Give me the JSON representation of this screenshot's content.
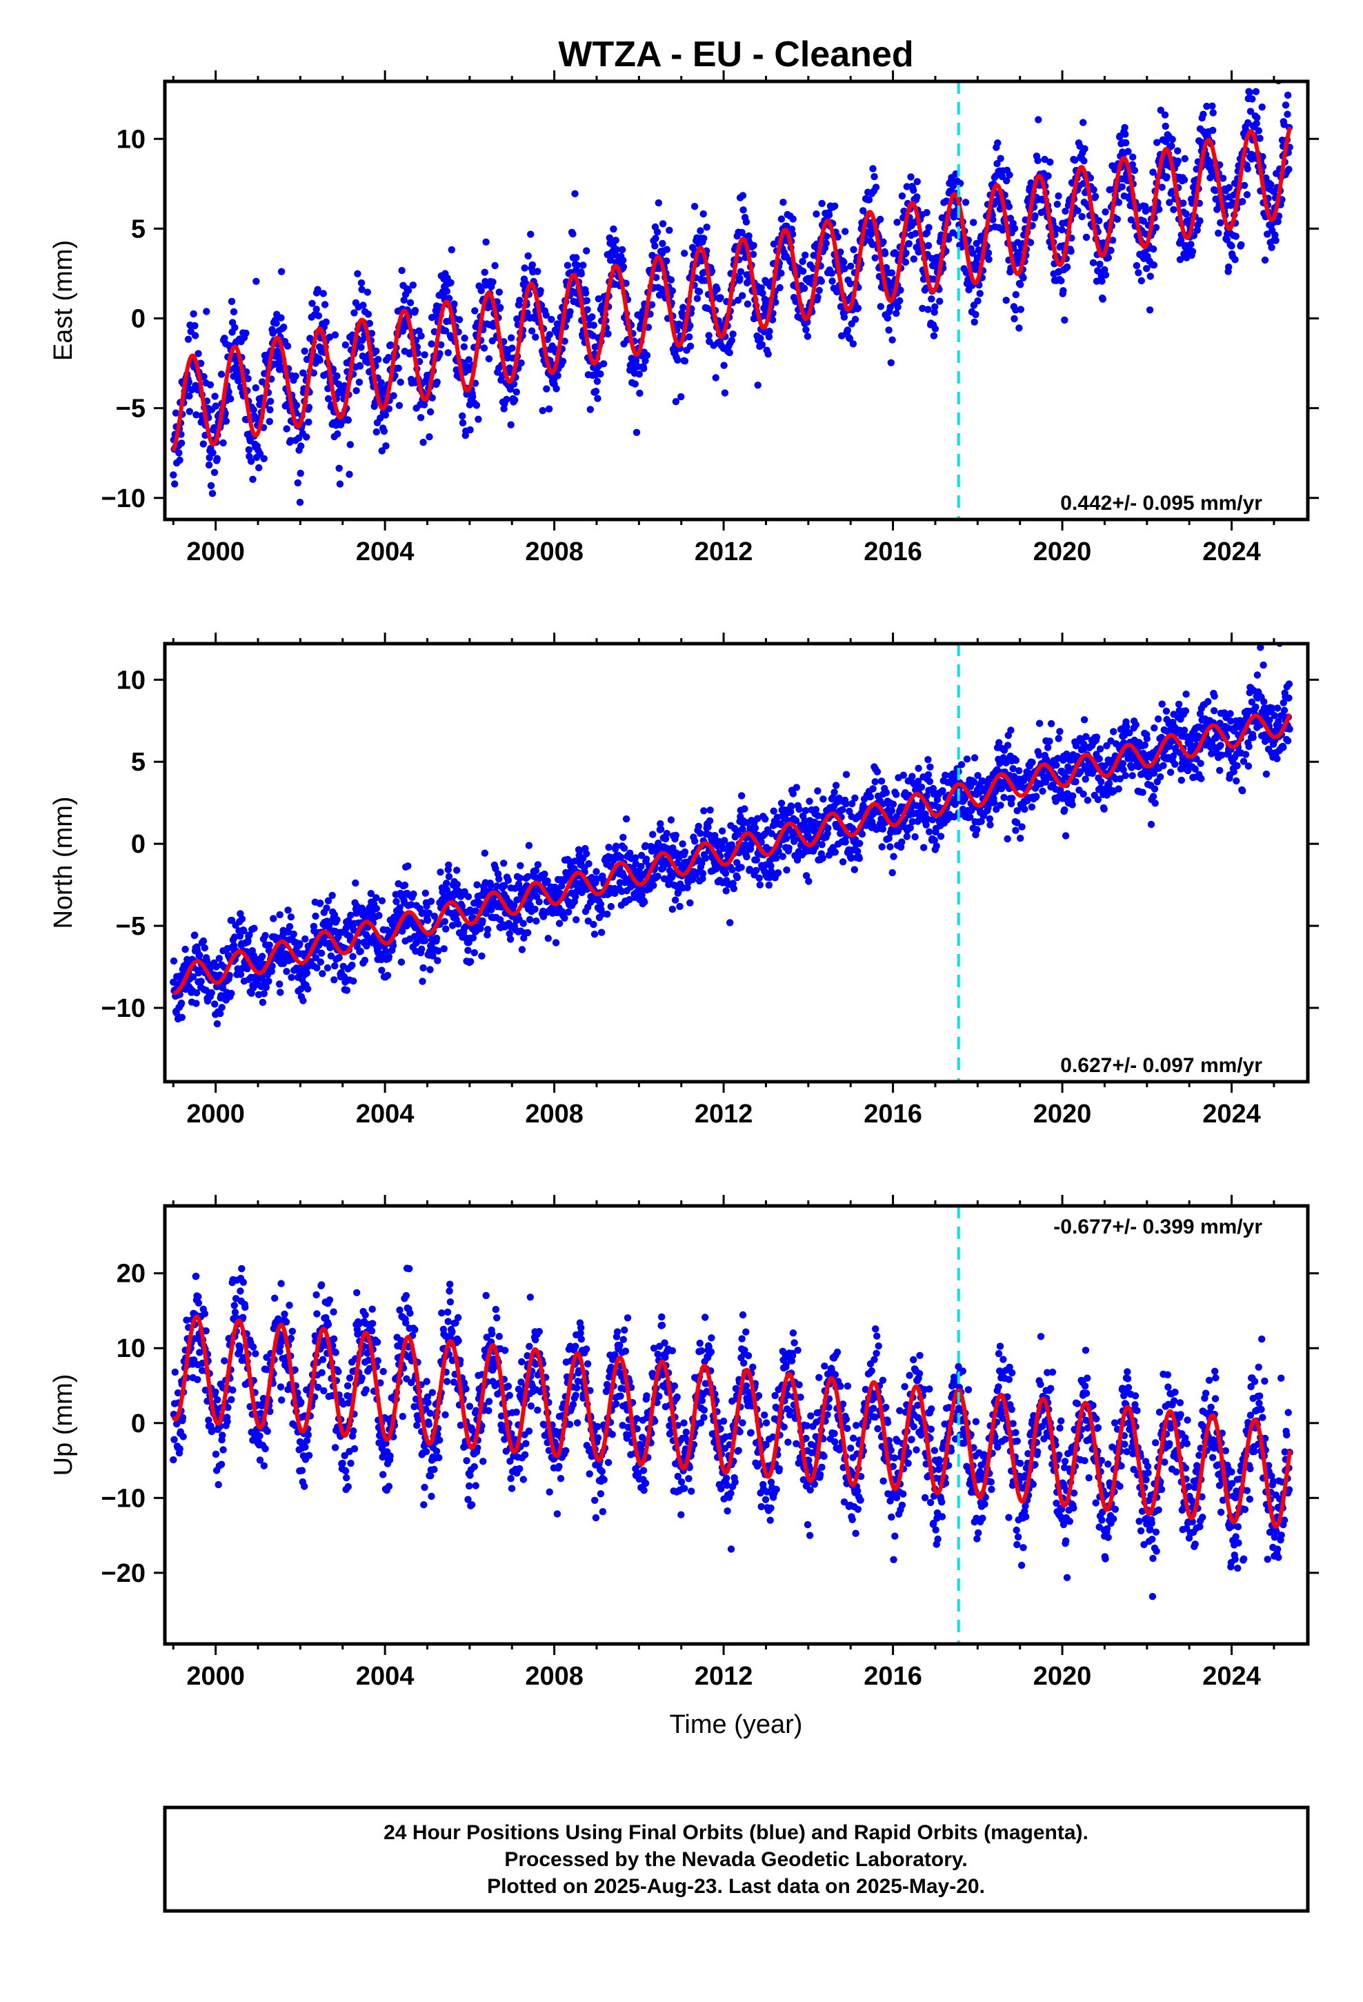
{
  "chart_data": [
    {
      "type": "scatter",
      "title": "WTZA  - EU - Cleaned",
      "ylabel": "East (mm)",
      "xlabel": "",
      "xlim": [
        1998.8,
        2025.8
      ],
      "ylim": [
        -11.2,
        13.2
      ],
      "x_ticks": [
        2000,
        2004,
        2008,
        2012,
        2016,
        2020,
        2024
      ],
      "y_ticks": [
        -10,
        -5,
        0,
        5,
        10
      ],
      "rate_text": "0.442+/- 0.095 mm/yr",
      "rate_position": "bottom-right",
      "grid": false,
      "marker_line_year": 2017.55,
      "data_range": [
        1999.0,
        2025.38
      ],
      "series": [
        {
          "name": "Final Orbits",
          "kind": "scatter",
          "color": "#0000ff",
          "model": {
            "intercept": -4.9,
            "rate": 0.5,
            "annual_amplitude": 2.6,
            "peak_phase": 0.45,
            "scatter_sd": 1.3
          }
        },
        {
          "name": "Model Fit",
          "kind": "line",
          "color": "#ff0000",
          "x": [
            1999.0,
            2004.0,
            2008.0,
            2012.0,
            2016.0,
            2020.0,
            2025.38
          ],
          "y": [
            -4.9,
            -2.4,
            -0.4,
            1.6,
            3.6,
            5.6,
            8.3
          ]
        }
      ]
    },
    {
      "type": "scatter",
      "title": "",
      "ylabel": "North (mm)",
      "xlabel": "",
      "xlim": [
        1998.8,
        2025.8
      ],
      "ylim": [
        -14.5,
        12.2
      ],
      "x_ticks": [
        2000,
        2004,
        2008,
        2012,
        2016,
        2020,
        2024
      ],
      "y_ticks": [
        -10,
        -5,
        0,
        5,
        10
      ],
      "rate_text": "0.627+/- 0.097 mm/yr",
      "rate_position": "bottom-right",
      "grid": false,
      "marker_line_year": 2017.55,
      "data_range": [
        1999.0,
        2025.38
      ],
      "series": [
        {
          "name": "Final Orbits",
          "kind": "scatter",
          "color": "#0000ff",
          "model": {
            "intercept": -8.3,
            "rate": 0.6,
            "annual_amplitude": 0.8,
            "peak_phase": 0.55,
            "scatter_sd": 1.1
          }
        },
        {
          "name": "Model Fit",
          "kind": "line",
          "color": "#ff0000",
          "x": [
            1999.0,
            2004.0,
            2008.0,
            2012.0,
            2016.0,
            2020.0,
            2025.38
          ],
          "y": [
            -8.3,
            -5.3,
            -2.9,
            -0.5,
            1.9,
            4.3,
            7.5
          ]
        }
      ]
    },
    {
      "type": "scatter",
      "title": "",
      "ylabel": "Up (mm)",
      "xlabel": "Time (year)",
      "xlim": [
        1998.8,
        2025.8
      ],
      "ylim": [
        -29.5,
        29.0
      ],
      "x_ticks": [
        2000,
        2004,
        2008,
        2012,
        2016,
        2020,
        2024
      ],
      "y_ticks": [
        -20,
        -10,
        0,
        10,
        20
      ],
      "rate_text": "-0.677+/- 0.399 mm/yr",
      "rate_position": "top-right",
      "grid": false,
      "marker_line_year": 2017.55,
      "data_range": [
        1999.0,
        2025.38
      ],
      "series": [
        {
          "name": "Final Orbits",
          "kind": "scatter",
          "color": "#0000ff",
          "model": {
            "intercept": 7.5,
            "rate": -0.55,
            "annual_amplitude": 7.0,
            "peak_phase": 0.55,
            "scatter_sd": 3.6
          }
        },
        {
          "name": "Model Fit",
          "kind": "line",
          "color": "#ff0000",
          "x": [
            1999.0,
            2004.0,
            2008.0,
            2012.0,
            2016.0,
            2020.0,
            2025.38
          ],
          "y": [
            7.5,
            4.8,
            2.6,
            0.4,
            -1.8,
            -4.0,
            -7.0
          ]
        }
      ]
    }
  ],
  "footer": {
    "line1": "24 Hour Positions Using Final Orbits (blue) and Rapid Orbits (magenta).",
    "line2": "Processed by the Nevada Geodetic Laboratory.",
    "line3": "Plotted on 2025-Aug-23. Last data on 2025-May-20."
  },
  "colors": {
    "points": "#0000ff",
    "fit": "#ff0000",
    "marker_line": "#00e5e5",
    "frame": "#000000"
  }
}
